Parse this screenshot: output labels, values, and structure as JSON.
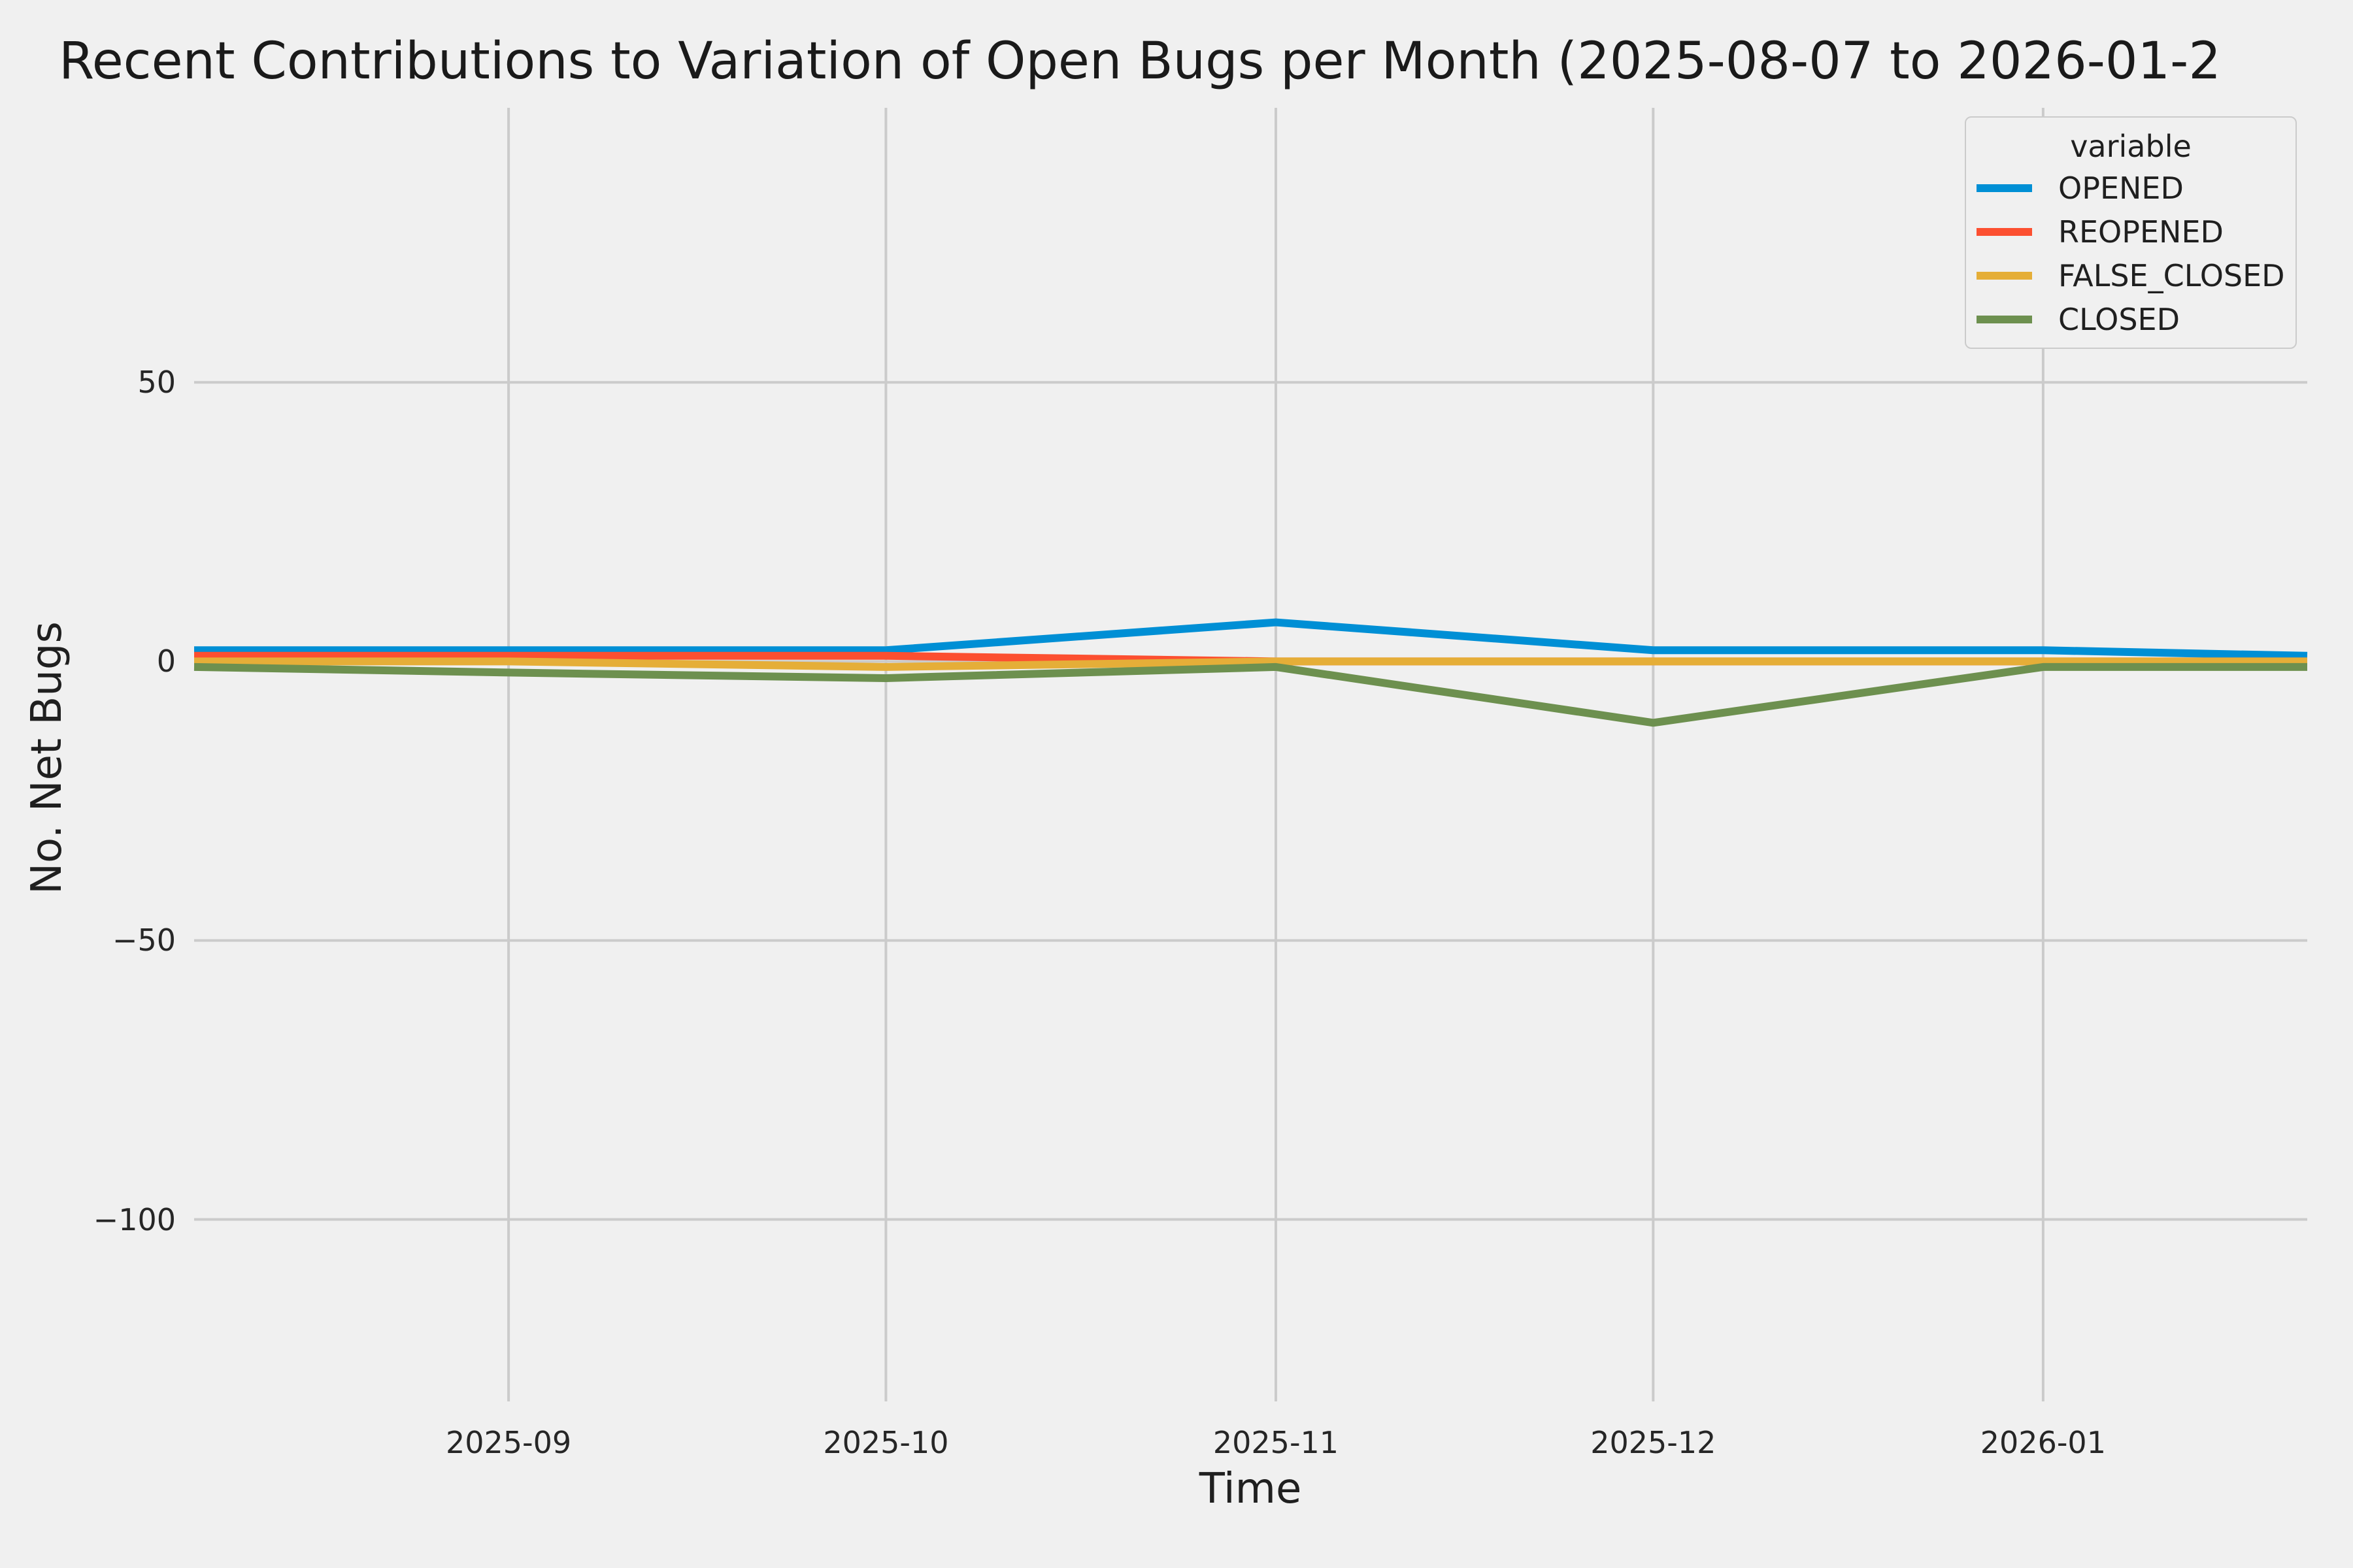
{
  "title": "Recent Contributions to Variation of Open Bugs per Month (2025-08-07 to 2026-01-2",
  "colors": {
    "background": "#f0f0f0",
    "grid": "#cbcbcb",
    "text": "#262626"
  },
  "chart_data": {
    "type": "line",
    "title": "Recent Contributions to Variation of Open Bugs per Month (2025-08-07 to 2026-01-2",
    "xlabel": "Time",
    "ylabel": "No. Net Bugs",
    "start_date": "2025-08-07",
    "x_days": [
      0,
      25,
      55,
      86,
      116,
      147,
      168
    ],
    "xlim_days": [
      0,
      168
    ],
    "ylim": [
      -132.6,
      99.2
    ],
    "grid": true,
    "xticks": [
      {
        "day": 25,
        "label": "2025-09"
      },
      {
        "day": 55,
        "label": "2025-10"
      },
      {
        "day": 86,
        "label": "2025-11"
      },
      {
        "day": 116,
        "label": "2025-12"
      },
      {
        "day": 147,
        "label": "2026-01"
      }
    ],
    "yticks": [
      {
        "value": 50,
        "label": "50"
      },
      {
        "value": 0,
        "label": "0"
      },
      {
        "value": -50,
        "label": "−50"
      },
      {
        "value": -100,
        "label": "−100"
      }
    ],
    "legend": {
      "title": "variable",
      "position": "upper right"
    },
    "series": [
      {
        "name": "OPENED",
        "color": "#008fd5",
        "values": [
          2,
          2,
          2,
          7,
          2,
          2,
          1
        ]
      },
      {
        "name": "REOPENED",
        "color": "#fc4f30",
        "values": [
          1,
          1,
          1,
          0,
          0,
          0,
          0
        ]
      },
      {
        "name": "FALSE_CLOSED",
        "color": "#e5ae38",
        "values": [
          0,
          0,
          -1,
          0,
          0,
          0,
          0
        ]
      },
      {
        "name": "CLOSED",
        "color": "#6d904f",
        "values": [
          -1,
          -2,
          -3,
          -1,
          -11,
          -1,
          -1
        ]
      }
    ]
  }
}
